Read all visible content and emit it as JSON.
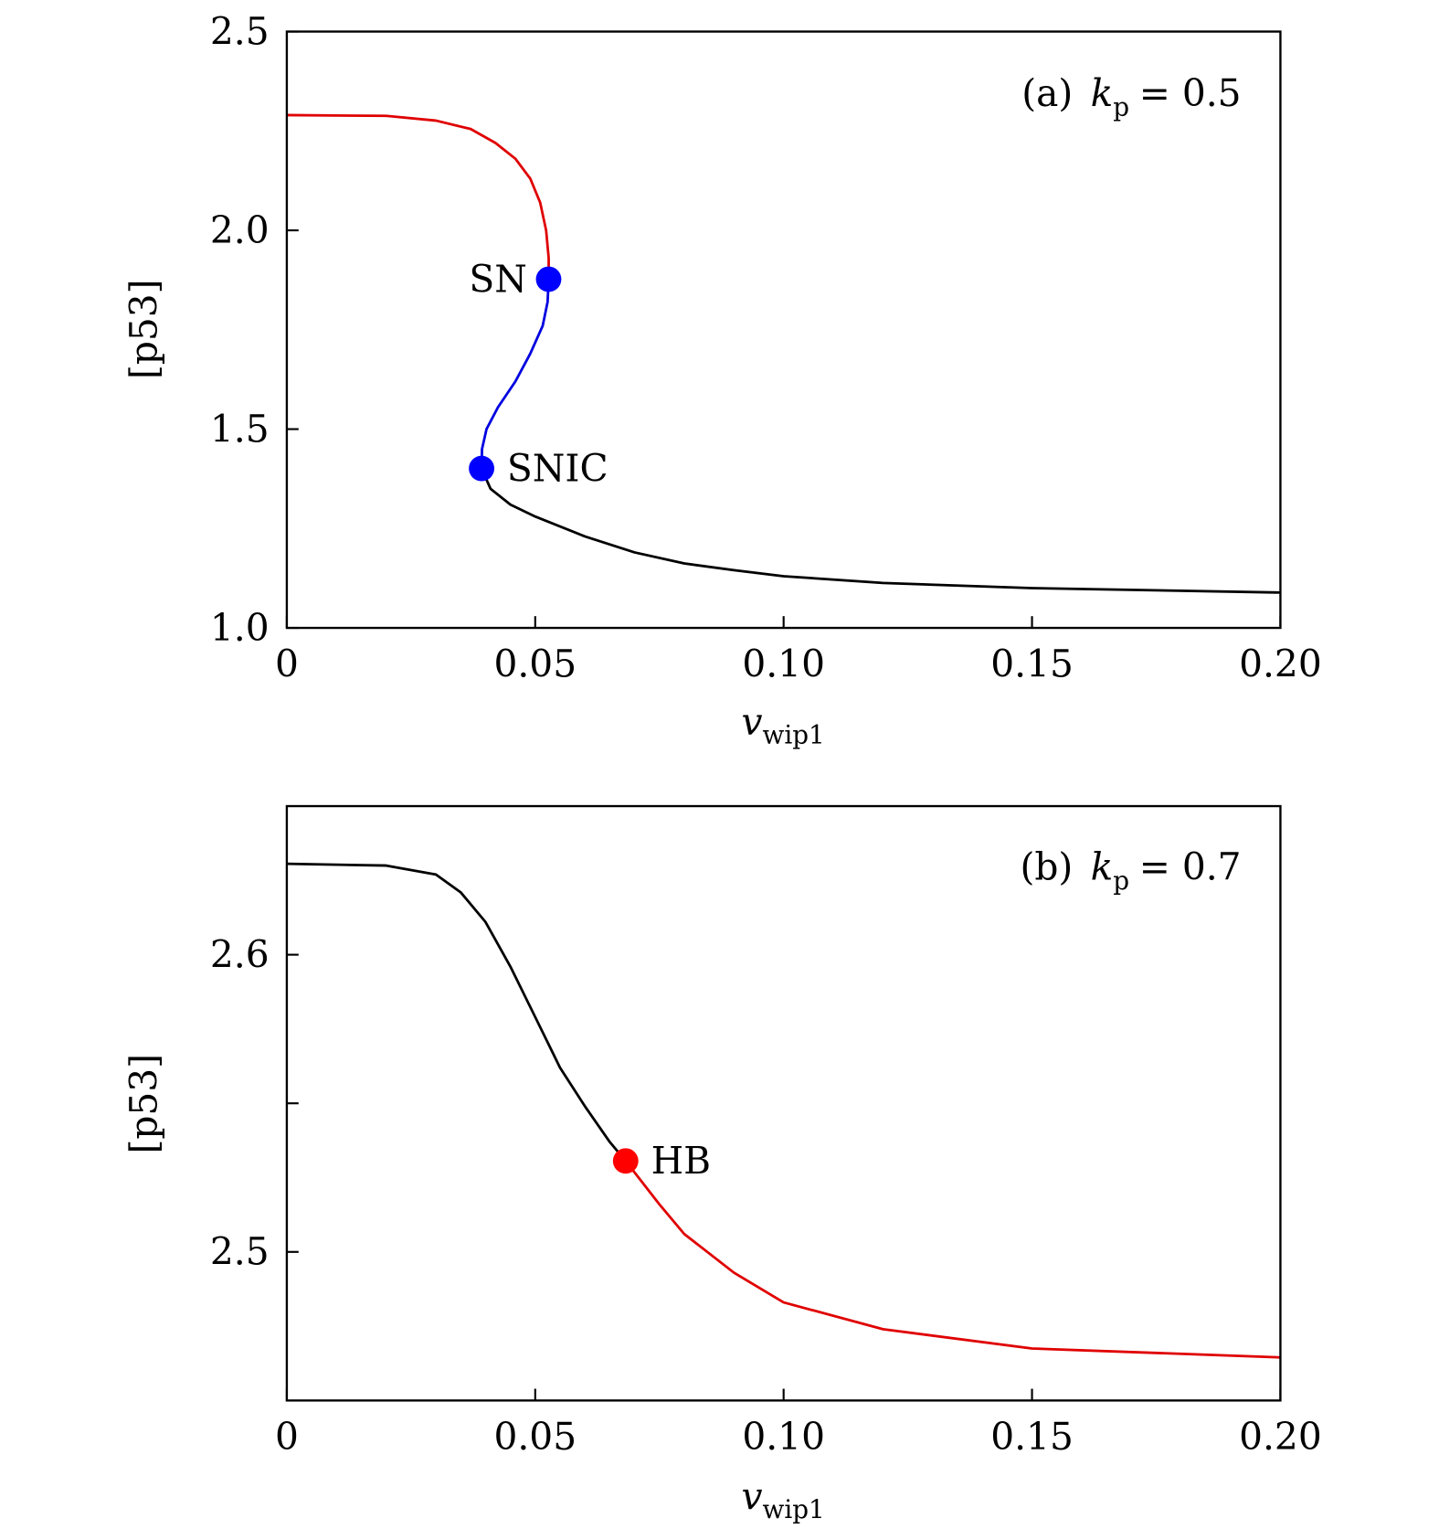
{
  "chart_data": [
    {
      "type": "line",
      "panel_label": "(a)",
      "annotation": {
        "symbol": "k",
        "subscript": "p",
        "relation": "= 0.5"
      },
      "xlabel": {
        "symbol": "v",
        "subscript": "wip1"
      },
      "ylabel": "[p53]",
      "xlim": [
        0,
        0.2
      ],
      "ylim": [
        1.0,
        2.5
      ],
      "xticks": [
        0,
        0.05,
        0.1,
        0.15,
        0.2
      ],
      "xtick_labels": [
        "0",
        "0.05",
        "0.10",
        "0.15",
        "0.20"
      ],
      "yticks": [
        1.0,
        1.5,
        2.0,
        2.5
      ],
      "ytick_labels": [
        "1.0",
        "1.5",
        "2.0",
        "2.5"
      ],
      "grid": false,
      "series": [
        {
          "color": "#e00000",
          "points": [
            [
              0,
              2.29
            ],
            [
              0.02,
              2.288
            ],
            [
              0.03,
              2.276
            ],
            [
              0.037,
              2.255
            ],
            [
              0.042,
              2.22
            ],
            [
              0.046,
              2.18
            ],
            [
              0.049,
              2.13
            ],
            [
              0.051,
              2.07
            ],
            [
              0.0522,
              2.0
            ],
            [
              0.0527,
              1.93
            ],
            [
              0.0527,
              1.877
            ]
          ]
        },
        {
          "color": "#0000e0",
          "points": [
            [
              0.0527,
              1.877
            ],
            [
              0.0525,
              1.82
            ],
            [
              0.0515,
              1.76
            ],
            [
              0.049,
              1.69
            ],
            [
              0.046,
              1.62
            ],
            [
              0.0425,
              1.555
            ],
            [
              0.0402,
              1.5
            ],
            [
              0.0393,
              1.45
            ],
            [
              0.0392,
              1.401
            ]
          ]
        },
        {
          "color": "#000000",
          "points": [
            [
              0.0392,
              1.401
            ],
            [
              0.041,
              1.35
            ],
            [
              0.045,
              1.31
            ],
            [
              0.05,
              1.28
            ],
            [
              0.06,
              1.23
            ],
            [
              0.07,
              1.19
            ],
            [
              0.08,
              1.162
            ],
            [
              0.09,
              1.145
            ],
            [
              0.1,
              1.13
            ],
            [
              0.12,
              1.113
            ],
            [
              0.15,
              1.1
            ],
            [
              0.2,
              1.089
            ]
          ]
        }
      ],
      "points": [
        {
          "label": "SN",
          "x": 0.0527,
          "y": 1.877,
          "color": "#0000ff"
        },
        {
          "label": "SNIC",
          "x": 0.0392,
          "y": 1.401,
          "color": "#0000ff"
        }
      ]
    },
    {
      "type": "line",
      "panel_label": "(b)",
      "annotation": {
        "symbol": "k",
        "subscript": "p",
        "relation": "= 0.7"
      },
      "xlabel": {
        "symbol": "v",
        "subscript": "wip1"
      },
      "ylabel": "[p53]",
      "xlim": [
        0,
        0.2
      ],
      "ylim": [
        2.45,
        2.65
      ],
      "xticks": [
        0,
        0.05,
        0.1,
        0.15,
        0.2
      ],
      "xtick_labels": [
        "0",
        "0.05",
        "0.10",
        "0.15",
        "0.20"
      ],
      "yticks": [
        2.5,
        2.55,
        2.6
      ],
      "ytick_labels": [
        "2.5",
        "",
        "2.6"
      ],
      "grid": false,
      "series": [
        {
          "color": "#000000",
          "points": [
            [
              0,
              2.6306
            ],
            [
              0.02,
              2.63
            ],
            [
              0.03,
              2.627
            ],
            [
              0.035,
              2.621
            ],
            [
              0.04,
              2.611
            ],
            [
              0.045,
              2.596
            ],
            [
              0.05,
              2.579
            ],
            [
              0.055,
              2.562
            ],
            [
              0.06,
              2.549
            ],
            [
              0.065,
              2.537
            ],
            [
              0.0682,
              2.5306
            ]
          ]
        },
        {
          "color": "#e00000",
          "points": [
            [
              0.0682,
              2.5306
            ],
            [
              0.075,
              2.516
            ],
            [
              0.08,
              2.506
            ],
            [
              0.09,
              2.493
            ],
            [
              0.1,
              2.483
            ],
            [
              0.12,
              2.474
            ],
            [
              0.15,
              2.4675
            ],
            [
              0.2,
              2.4645
            ]
          ]
        }
      ],
      "points": [
        {
          "label": "HB",
          "x": 0.0682,
          "y": 2.5306,
          "color": "#ff0000"
        }
      ]
    }
  ]
}
